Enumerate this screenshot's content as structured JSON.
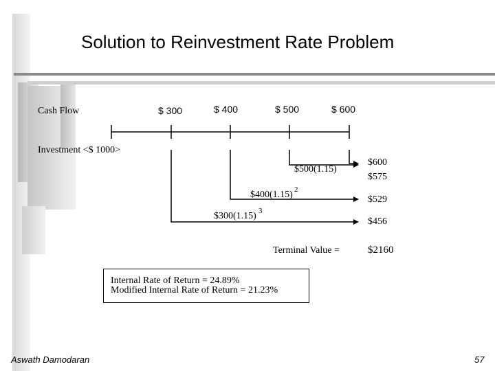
{
  "slide": {
    "title": "Solution to Reinvestment Rate Problem",
    "footer_author": "Aswath Damodaran",
    "page_number": "57"
  },
  "timeline": {
    "cash_flow_label": "Cash Flow",
    "investment_label": "Investment  <$ 1000>",
    "cash_flows": [
      "$ 300",
      "$ 400",
      "$ 500",
      "$ 600"
    ]
  },
  "compounding": [
    {
      "expr": "$500(1.15)",
      "exponent": "",
      "future_value": "$575"
    },
    {
      "expr": "$400(1.15)",
      "exponent": "2",
      "future_value": "$529"
    },
    {
      "expr": "$300(1.15)",
      "exponent": "3",
      "future_value": "$456"
    }
  ],
  "year4_value": "$600",
  "terminal": {
    "label": "Terminal Value =",
    "value": "$2160"
  },
  "rates": {
    "irr": "Internal Rate of Return = 24.89%",
    "mirr": "Modified Internal Rate of Return = 21.23%"
  },
  "colors": {
    "decoration_dark": "#a9a9a9",
    "decoration_light": "#dcdcdc"
  }
}
